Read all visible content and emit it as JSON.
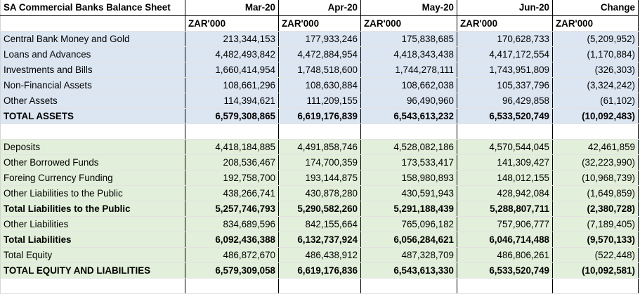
{
  "sheet": {
    "title": "SA Commercial Banks Balance Sheet",
    "months": [
      "Mar-20",
      "Apr-20",
      "May-20",
      "Jun-20"
    ],
    "change_header": "Change",
    "unit": "ZAR'000"
  },
  "assets": [
    {
      "label": "Central Bank Money and Gold",
      "values": [
        "213,344,153",
        "177,933,246",
        "175,838,685",
        "170,628,733"
      ],
      "change": "(5,209,952)"
    },
    {
      "label": "Loans and Advances",
      "values": [
        "4,482,493,842",
        "4,472,884,954",
        "4,418,343,438",
        "4,417,172,554"
      ],
      "change": "(1,170,884)"
    },
    {
      "label": "Investments and Bills",
      "values": [
        "1,660,414,954",
        "1,748,518,600",
        "1,744,278,111",
        "1,743,951,809"
      ],
      "change": "(326,303)"
    },
    {
      "label": "Non-Financial Assets",
      "values": [
        "108,661,296",
        "108,630,884",
        "108,662,038",
        "105,337,796"
      ],
      "change": "(3,324,242)"
    },
    {
      "label": "Other Assets",
      "values": [
        "114,394,621",
        "111,209,155",
        "96,490,960",
        "96,429,858"
      ],
      "change": "(61,102)"
    }
  ],
  "total_assets": {
    "label": "TOTAL ASSETS",
    "values": [
      "6,579,308,865",
      "6,619,176,839",
      "6,543,613,232",
      "6,533,520,749"
    ],
    "change": "(10,092,483)"
  },
  "liabilities": [
    {
      "label": "Deposits",
      "values": [
        "4,418,184,885",
        "4,491,858,746",
        "4,528,082,186",
        "4,570,544,045"
      ],
      "change": "42,461,859",
      "bold": false
    },
    {
      "label": "Other Borrowed Funds",
      "values": [
        "208,536,467",
        "174,700,359",
        "173,533,417",
        "141,309,427"
      ],
      "change": "(32,223,990)",
      "bold": false
    },
    {
      "label": "Foreing Currency Funding",
      "values": [
        "192,758,700",
        "193,144,875",
        "158,980,893",
        "148,012,155"
      ],
      "change": "(10,968,739)",
      "bold": false
    },
    {
      "label": "Other Liabilities to the Public",
      "values": [
        "438,266,741",
        "430,878,280",
        "430,591,943",
        "428,942,084"
      ],
      "change": "(1,649,859)",
      "bold": false
    },
    {
      "label": "Total Liabilities to the Public",
      "values": [
        "5,257,746,793",
        "5,290,582,260",
        "5,291,188,439",
        "5,288,807,711"
      ],
      "change": "(2,380,728)",
      "bold": true
    },
    {
      "label": "Other Liabilities",
      "values": [
        "834,689,596",
        "842,155,664",
        "765,096,182",
        "757,906,777"
      ],
      "change": "(7,189,405)",
      "bold": false
    },
    {
      "label": "Total Liabilities",
      "values": [
        "6,092,436,388",
        "6,132,737,924",
        "6,056,284,621",
        "6,046,714,488"
      ],
      "change": "(9,570,133)",
      "bold": true
    },
    {
      "label": "Total Equity",
      "values": [
        "486,872,670",
        "486,438,912",
        "487,328,709",
        "486,806,261"
      ],
      "change": "(522,448)",
      "bold": false
    }
  ],
  "total_equity_liabilities": {
    "label": "TOTAL EQUITY AND LIABILITIES",
    "values": [
      "6,579,309,058",
      "6,619,176,836",
      "6,543,613,330",
      "6,533,520,749"
    ],
    "change": "(10,092,581)"
  }
}
